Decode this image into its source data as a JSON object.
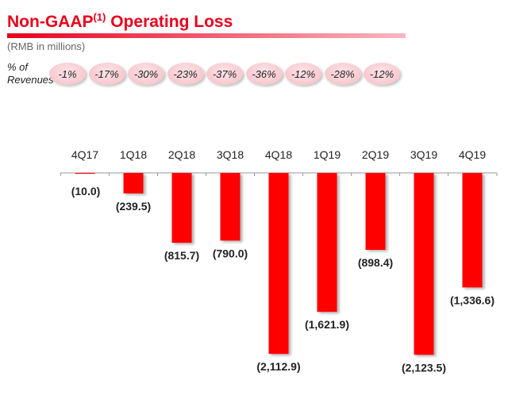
{
  "header": {
    "title": "Non-GAAP",
    "title_sup": "(1)",
    "title_rest": " Operating Loss",
    "subtitle": "(RMB in millions)"
  },
  "pct_label_line1": "% of",
  "pct_label_line2": "Revenues",
  "colors": {
    "bar": "#ff0000",
    "title": "#e8001c",
    "pill": "#f8ccd2"
  },
  "chart_data": {
    "type": "bar",
    "categories": [
      "4Q17",
      "1Q18",
      "2Q18",
      "3Q18",
      "4Q18",
      "1Q19",
      "2Q19",
      "3Q19",
      "4Q19"
    ],
    "values": [
      -10.0,
      -239.5,
      -815.7,
      -790.0,
      -2112.9,
      -1621.9,
      -898.4,
      -2123.5,
      -1336.6
    ],
    "data_labels": [
      "(10.0)",
      "(239.5)",
      "(815.7)",
      "(790.0)",
      "(2,112.9)",
      "(1,621.9)",
      "(898.4)",
      "(2,123.5)",
      "(1,336.6)"
    ],
    "pct_of_revenues": [
      "-1%",
      "-17%",
      "-30%",
      "-23%",
      "-37%",
      "-36%",
      "-12%",
      "-28%",
      "-12%"
    ],
    "title": "Non-GAAP(1) Operating Loss",
    "ylabel": "",
    "unit": "RMB in millions",
    "grid": false
  }
}
